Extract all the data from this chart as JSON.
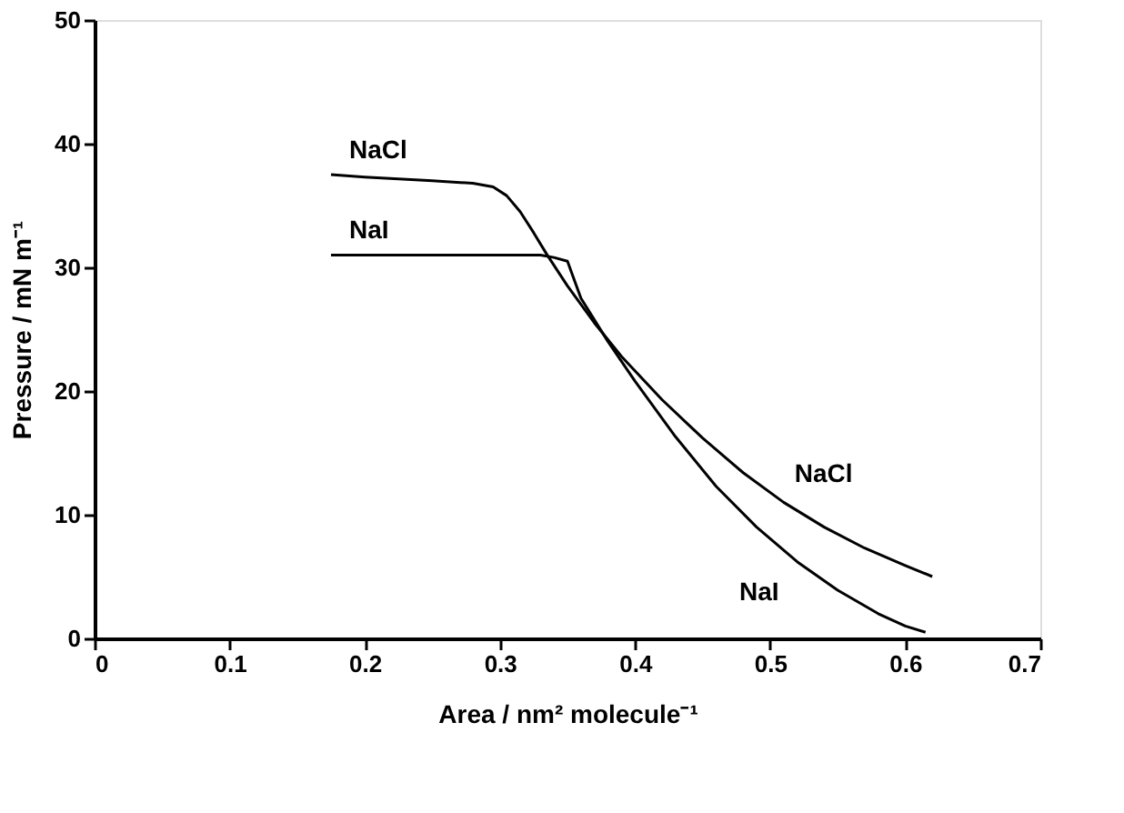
{
  "chart_data": {
    "type": "line",
    "xlabel": "Area / nm² molecule⁻¹",
    "ylabel": "Pressure / mN m⁻¹",
    "xlim": [
      0,
      0.7
    ],
    "xticks": [
      0,
      0.1,
      0.2,
      0.3,
      0.4,
      0.5,
      0.6,
      0.7
    ],
    "ylim": [
      0,
      50
    ],
    "yticks": [
      0,
      10,
      20,
      30,
      40,
      50
    ],
    "grid": false,
    "series": [
      {
        "name": "NaCl",
        "color": "#000000",
        "x": [
          0.175,
          0.2,
          0.25,
          0.28,
          0.295,
          0.305,
          0.315,
          0.325,
          0.335,
          0.35,
          0.37,
          0.39,
          0.42,
          0.45,
          0.48,
          0.51,
          0.54,
          0.57,
          0.6,
          0.62
        ],
        "values": [
          37.5,
          37.3,
          37.0,
          36.8,
          36.5,
          35.8,
          34.5,
          32.8,
          31.0,
          28.5,
          25.5,
          22.8,
          19.3,
          16.2,
          13.4,
          11.0,
          9.0,
          7.3,
          5.9,
          5.0
        ]
      },
      {
        "name": "NaI",
        "color": "#000000",
        "x": [
          0.175,
          0.2,
          0.25,
          0.3,
          0.33,
          0.34,
          0.35,
          0.36,
          0.38,
          0.4,
          0.43,
          0.46,
          0.49,
          0.52,
          0.55,
          0.58,
          0.6,
          0.615
        ],
        "values": [
          31.0,
          31.0,
          31.0,
          31.0,
          31.0,
          30.8,
          30.5,
          27.5,
          24.0,
          20.8,
          16.3,
          12.3,
          9.0,
          6.2,
          3.9,
          2.0,
          1.0,
          0.5
        ]
      }
    ],
    "legend": false
  }
}
